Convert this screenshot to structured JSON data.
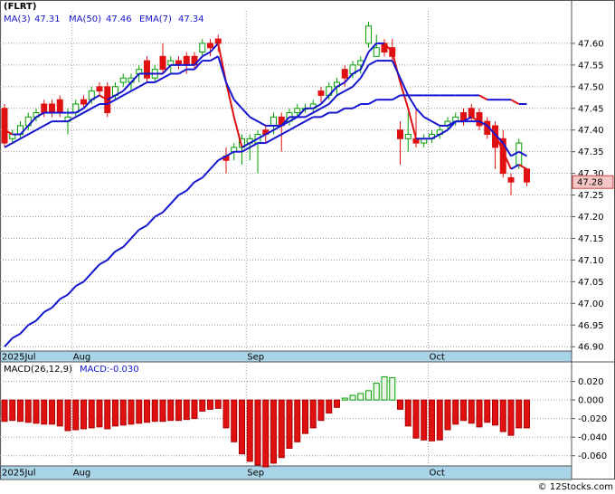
{
  "chart_data": [
    {
      "type": "candlestick",
      "title": "(FLRT)",
      "categories": [
        "2025Jul",
        null,
        null,
        null,
        null,
        null,
        null,
        null,
        null,
        "Aug",
        null,
        null,
        null,
        null,
        null,
        null,
        null,
        null,
        null,
        null,
        null,
        null,
        null,
        null,
        null,
        null,
        null,
        null,
        null,
        null,
        null,
        "Sep",
        null,
        null,
        null,
        null,
        null,
        null,
        null,
        null,
        null,
        null,
        null,
        null,
        null,
        null,
        null,
        null,
        null,
        null,
        null,
        null,
        null,
        null,
        "Oct",
        null,
        null,
        null,
        null,
        null,
        null,
        null,
        null,
        null,
        null,
        null,
        null
      ],
      "open": [
        47.45,
        47.38,
        47.39,
        47.41,
        47.43,
        47.46,
        47.46,
        47.47,
        47.42,
        47.44,
        47.47,
        47.47,
        47.5,
        47.5,
        47.48,
        47.51,
        47.51,
        47.53,
        47.56,
        47.52,
        47.57,
        47.55,
        47.56,
        47.57,
        47.57,
        47.58,
        47.6,
        47.61,
        47.34,
        47.35,
        47.36,
        47.37,
        47.37,
        47.4,
        47.41,
        47.43,
        47.42,
        47.44,
        47.45,
        47.45,
        47.49,
        47.48,
        47.5,
        47.54,
        47.53,
        47.55,
        47.6,
        47.57,
        47.6,
        47.59,
        47.4,
        47.38,
        47.38,
        47.37,
        47.38,
        47.39,
        47.41,
        47.42,
        47.44,
        47.45,
        47.44,
        47.42,
        47.41,
        47.38,
        47.29,
        47.32,
        47.31
      ],
      "high": [
        47.46,
        47.4,
        47.42,
        47.44,
        47.45,
        47.47,
        47.47,
        47.48,
        47.45,
        47.47,
        47.48,
        47.5,
        47.51,
        47.51,
        47.51,
        47.53,
        47.53,
        47.55,
        47.57,
        47.55,
        47.6,
        47.57,
        47.57,
        47.58,
        47.58,
        47.61,
        47.61,
        47.62,
        47.36,
        47.37,
        47.39,
        47.39,
        47.4,
        47.41,
        47.44,
        47.44,
        47.45,
        47.46,
        47.46,
        47.47,
        47.5,
        47.51,
        47.52,
        47.55,
        47.56,
        47.57,
        47.65,
        47.62,
        47.61,
        47.61,
        47.42,
        47.44,
        47.45,
        47.39,
        47.4,
        47.41,
        47.43,
        47.44,
        47.45,
        47.46,
        47.45,
        47.43,
        47.42,
        47.4,
        47.3,
        47.38,
        47.31
      ],
      "low": [
        47.36,
        47.37,
        47.38,
        47.4,
        47.42,
        47.43,
        47.43,
        47.43,
        47.39,
        47.43,
        47.45,
        47.46,
        47.48,
        47.43,
        47.47,
        47.5,
        47.49,
        47.51,
        47.51,
        47.51,
        47.53,
        47.53,
        47.54,
        47.53,
        47.54,
        47.57,
        47.57,
        47.58,
        47.3,
        47.33,
        47.32,
        47.33,
        47.3,
        47.37,
        47.39,
        47.35,
        47.41,
        47.43,
        47.44,
        47.44,
        47.46,
        47.47,
        47.48,
        47.5,
        47.52,
        47.53,
        47.59,
        47.57,
        47.57,
        47.56,
        47.32,
        47.35,
        47.36,
        47.36,
        47.37,
        47.38,
        47.4,
        47.41,
        47.41,
        47.42,
        47.4,
        47.38,
        47.31,
        47.29,
        47.25,
        47.31,
        47.27
      ],
      "close": [
        47.37,
        47.39,
        47.41,
        47.43,
        47.44,
        47.44,
        47.44,
        47.44,
        47.43,
        47.46,
        47.46,
        47.49,
        47.49,
        47.44,
        47.5,
        47.52,
        47.52,
        47.54,
        47.52,
        47.54,
        47.54,
        47.56,
        47.55,
        47.55,
        47.55,
        47.6,
        47.59,
        47.6,
        47.33,
        47.36,
        47.38,
        47.38,
        47.39,
        47.39,
        47.43,
        47.41,
        47.44,
        47.45,
        47.45,
        47.46,
        47.48,
        47.5,
        47.51,
        47.52,
        47.55,
        47.56,
        47.64,
        47.59,
        47.58,
        47.57,
        47.38,
        47.39,
        47.37,
        47.38,
        47.39,
        47.4,
        47.42,
        47.43,
        47.42,
        47.43,
        47.41,
        47.39,
        47.36,
        47.3,
        47.28,
        47.37,
        47.28
      ],
      "series": [
        {
          "name": "MA(3)",
          "color": "#1515d0",
          "fall_color": "#e01010",
          "values": [
            47.4,
            47.39,
            47.39,
            47.41,
            47.43,
            47.44,
            47.44,
            47.44,
            47.44,
            47.44,
            47.45,
            47.47,
            47.48,
            47.47,
            47.48,
            47.49,
            47.51,
            47.53,
            47.53,
            47.53,
            47.53,
            47.55,
            47.55,
            47.55,
            47.55,
            47.57,
            47.58,
            47.6,
            47.51,
            47.43,
            47.36,
            47.37,
            47.38,
            47.39,
            47.4,
            47.41,
            47.43,
            47.43,
            47.45,
            47.45,
            47.46,
            47.48,
            47.5,
            47.51,
            47.53,
            47.54,
            47.58,
            47.6,
            47.6,
            47.58,
            47.51,
            47.45,
            47.38,
            47.38,
            47.38,
            47.39,
            47.4,
            47.42,
            47.42,
            47.43,
            47.42,
            47.41,
            47.39,
            47.35,
            47.31,
            47.32,
            47.31
          ]
        },
        {
          "name": "MA(50)",
          "color": "#1515d0",
          "fall_color": "#e01010",
          "values": [
            46.9,
            46.92,
            46.93,
            46.95,
            46.96,
            46.98,
            46.99,
            47.01,
            47.02,
            47.04,
            47.05,
            47.07,
            47.09,
            47.1,
            47.12,
            47.13,
            47.15,
            47.17,
            47.18,
            47.2,
            47.21,
            47.23,
            47.25,
            47.26,
            47.28,
            47.29,
            47.31,
            47.33,
            47.34,
            47.35,
            47.35,
            47.36,
            47.37,
            47.37,
            47.38,
            47.39,
            47.4,
            47.41,
            47.42,
            47.43,
            47.43,
            47.44,
            47.44,
            47.45,
            47.45,
            47.46,
            47.46,
            47.47,
            47.47,
            47.47,
            47.48,
            47.48,
            47.48,
            47.48,
            47.48,
            47.48,
            47.48,
            47.48,
            47.48,
            47.48,
            47.48,
            47.47,
            47.47,
            47.47,
            47.47,
            47.46,
            47.46
          ]
        },
        {
          "name": "EMA(7)",
          "color": "#1515d0",
          "values": [
            47.36,
            47.37,
            47.38,
            47.39,
            47.4,
            47.41,
            47.42,
            47.42,
            47.42,
            47.43,
            47.44,
            47.45,
            47.46,
            47.46,
            47.47,
            47.48,
            47.49,
            47.5,
            47.51,
            47.51,
            47.52,
            47.53,
            47.53,
            47.54,
            47.54,
            47.56,
            47.56,
            47.57,
            47.51,
            47.47,
            47.45,
            47.43,
            47.42,
            47.41,
            47.41,
            47.41,
            47.42,
            47.43,
            47.43,
            47.44,
            47.45,
            47.46,
            47.48,
            47.49,
            47.5,
            47.52,
            47.55,
            47.56,
            47.56,
            47.56,
            47.52,
            47.48,
            47.45,
            47.43,
            47.42,
            47.41,
            47.41,
            47.42,
            47.42,
            47.42,
            47.42,
            47.41,
            47.39,
            47.37,
            47.34,
            47.35,
            47.34
          ]
        }
      ],
      "up_color": "#00a000",
      "down_color": "#e01010",
      "ylim": [
        46.89,
        47.675
      ],
      "yticks": [
        {
          "value": 46.9,
          "label": "46.90"
        },
        46.95,
        {
          "value": 47.0,
          "label": "47.00"
        },
        47.05,
        {
          "value": 47.1,
          "label": "47.10"
        },
        47.15,
        {
          "value": 47.2,
          "label": "47.20"
        },
        47.25,
        {
          "value": 47.3,
          "label": "47.30"
        },
        47.35,
        {
          "value": 47.4,
          "label": "47.40"
        },
        47.45,
        {
          "value": 47.5,
          "label": "47.50"
        },
        47.55,
        {
          "value": 47.6,
          "label": "47.60"
        }
      ],
      "grid": true
    },
    {
      "type": "bar",
      "title": "MACD(26,12,9)",
      "legend_text": "MACD:-0.030",
      "values": [
        -0.023,
        -0.022,
        -0.023,
        -0.024,
        -0.025,
        -0.026,
        -0.026,
        -0.028,
        -0.033,
        -0.032,
        -0.031,
        -0.03,
        -0.029,
        -0.031,
        -0.028,
        -0.027,
        -0.026,
        -0.025,
        -0.024,
        -0.023,
        -0.023,
        -0.022,
        -0.022,
        -0.021,
        -0.02,
        -0.012,
        -0.01,
        -0.009,
        -0.03,
        -0.045,
        -0.058,
        -0.066,
        -0.07,
        -0.072,
        -0.068,
        -0.062,
        -0.052,
        -0.045,
        -0.036,
        -0.03,
        -0.022,
        -0.014,
        -0.008,
        0.002,
        0.005,
        0.007,
        0.01,
        0.018,
        0.025,
        0.024,
        -0.01,
        -0.028,
        -0.041,
        -0.043,
        -0.044,
        -0.043,
        -0.032,
        -0.026,
        -0.022,
        -0.025,
        -0.029,
        -0.024,
        -0.027,
        -0.034,
        -0.038,
        -0.03,
        -0.03
      ],
      "up_color": "#00a000",
      "down_color": "#e01010",
      "ylim": [
        -0.071,
        0.041
      ],
      "yticks": [
        {
          "value": 0.02,
          "label": "0.020"
        },
        {
          "value": 0,
          "label": "0.000"
        },
        {
          "value": -0.02,
          "label": "-0.020"
        },
        {
          "value": -0.04,
          "label": "-0.040"
        },
        {
          "value": -0.06,
          "label": "-0.060"
        }
      ],
      "grid": true
    }
  ],
  "footer": "© 12Stocks.com"
}
